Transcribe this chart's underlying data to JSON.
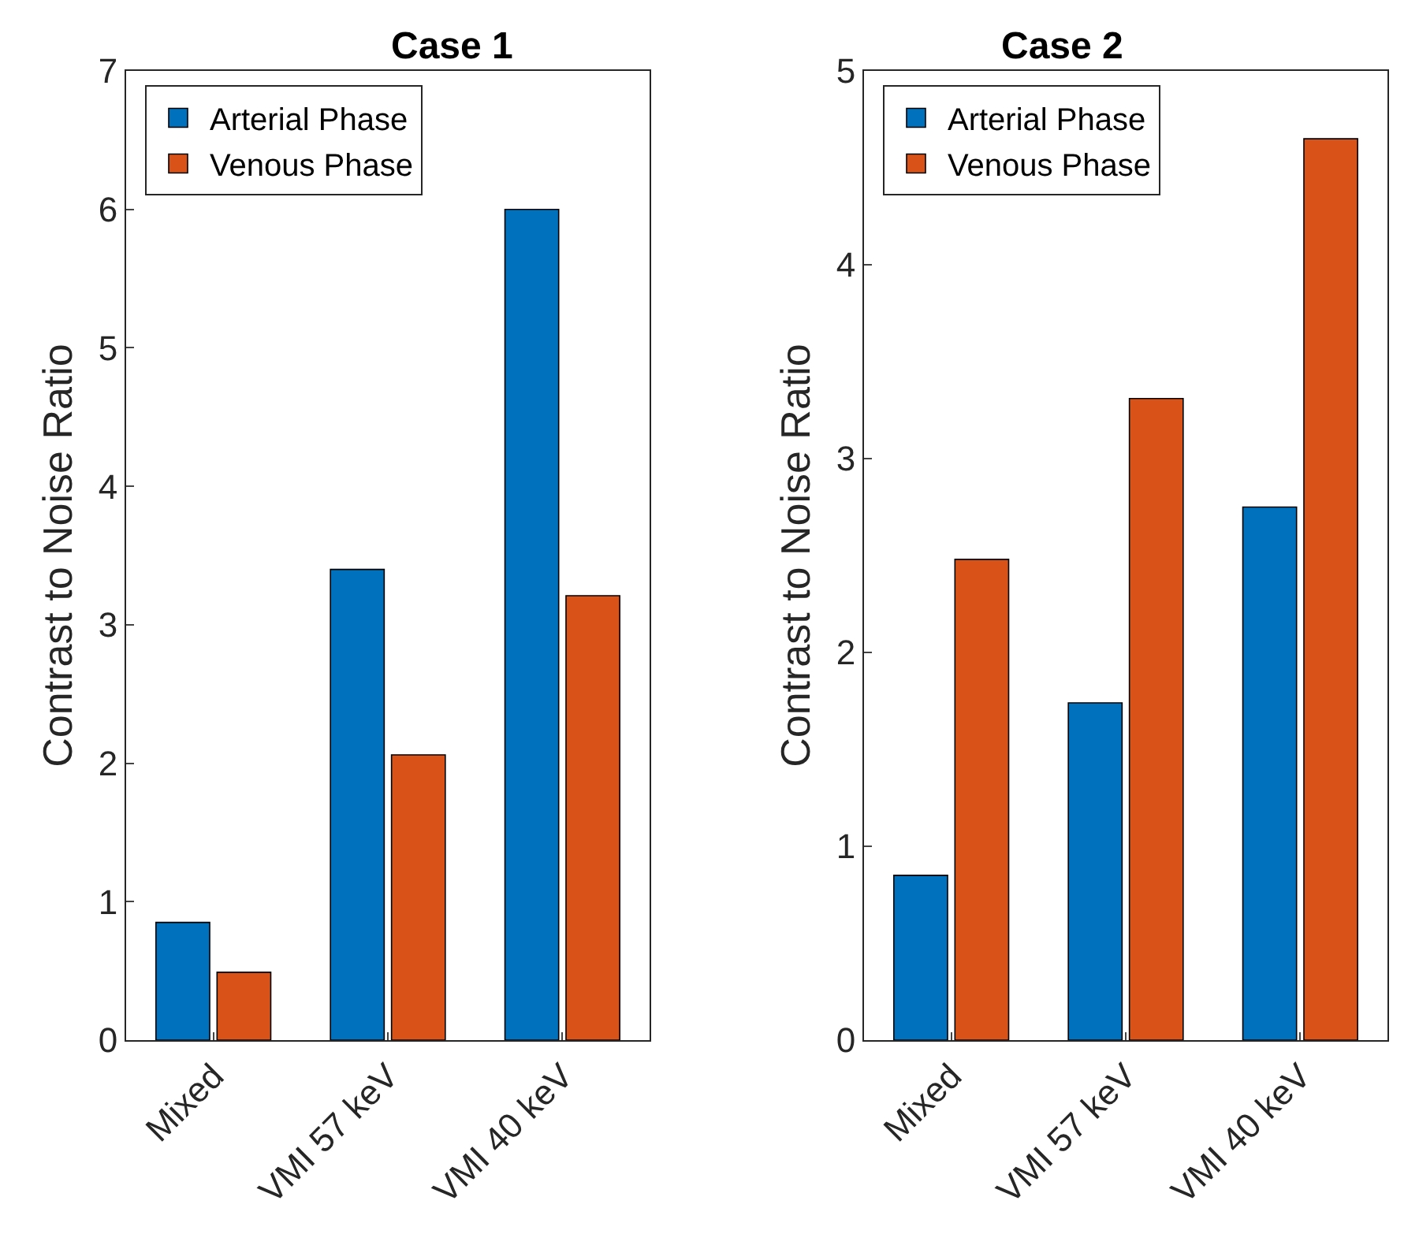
{
  "chart_data": [
    {
      "type": "bar",
      "title": "Case 1",
      "ylabel": "Contrast to Noise Ratio",
      "categories": [
        "Mixed",
        "VMI 57 keV",
        "VMI 40 keV"
      ],
      "series": [
        {
          "name": "Arterial Phase",
          "color": "#0072bd",
          "values": [
            0.85,
            3.4,
            6.0
          ]
        },
        {
          "name": "Venous Phase",
          "color": "#d95319",
          "values": [
            0.49,
            2.06,
            3.21
          ]
        }
      ],
      "ylim": [
        0,
        7
      ],
      "yticks": [
        0,
        1,
        2,
        3,
        4,
        5,
        6,
        7
      ],
      "legend": "top left"
    },
    {
      "type": "bar",
      "title": "Case 2",
      "ylabel": "Contrast to Noise Ratio",
      "categories": [
        "Mixed",
        "VMI 57 keV",
        "VMI 40 keV"
      ],
      "series": [
        {
          "name": "Arterial Phase",
          "color": "#0072bd",
          "values": [
            0.85,
            1.74,
            2.75
          ]
        },
        {
          "name": "Venous Phase",
          "color": "#d95319",
          "values": [
            2.48,
            3.31,
            4.65
          ]
        }
      ],
      "ylim": [
        0,
        5
      ],
      "yticks": [
        0,
        1,
        2,
        3,
        4,
        5
      ],
      "legend": "top left"
    }
  ]
}
